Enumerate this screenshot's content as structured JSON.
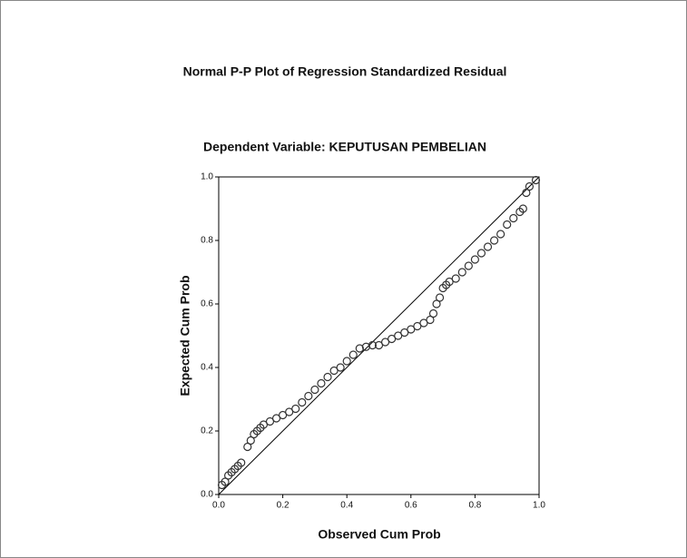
{
  "chart_data": {
    "type": "scatter",
    "title": "Normal P-P Plot of Regression Standardized Residual",
    "subtitle": "Dependent Variable: KEPUTUSAN PEMBELIAN",
    "x_label": "Observed Cum Prob",
    "y_label": "Expected Cum Prob",
    "color": "#333333",
    "x": [
      0.01,
      0.02,
      0.03,
      0.04,
      0.05,
      0.06,
      0.07,
      0.09,
      0.1,
      0.11,
      0.12,
      0.13,
      0.14,
      0.16,
      0.18,
      0.2,
      0.22,
      0.24,
      0.26,
      0.28,
      0.3,
      0.32,
      0.34,
      0.36,
      0.38,
      0.4,
      0.42,
      0.44,
      0.46,
      0.48,
      0.5,
      0.52,
      0.54,
      0.56,
      0.58,
      0.6,
      0.62,
      0.64,
      0.66,
      0.67,
      0.68,
      0.69,
      0.7,
      0.71,
      0.72,
      0.74,
      0.76,
      0.78,
      0.8,
      0.82,
      0.84,
      0.86,
      0.88,
      0.9,
      0.92,
      0.94,
      0.95,
      0.96,
      0.97,
      0.99
    ],
    "values": [
      0.03,
      0.04,
      0.06,
      0.07,
      0.08,
      0.09,
      0.1,
      0.15,
      0.17,
      0.19,
      0.2,
      0.21,
      0.22,
      0.23,
      0.24,
      0.25,
      0.26,
      0.27,
      0.29,
      0.31,
      0.33,
      0.35,
      0.37,
      0.39,
      0.4,
      0.42,
      0.44,
      0.46,
      0.465,
      0.47,
      0.47,
      0.48,
      0.49,
      0.5,
      0.51,
      0.52,
      0.53,
      0.54,
      0.55,
      0.57,
      0.6,
      0.62,
      0.65,
      0.66,
      0.67,
      0.68,
      0.7,
      0.72,
      0.74,
      0.76,
      0.78,
      0.8,
      0.82,
      0.85,
      0.87,
      0.89,
      0.9,
      0.95,
      0.97,
      0.99
    ],
    "xlim": [
      0,
      1
    ],
    "ylim": [
      0,
      1
    ],
    "xticks": [
      {
        "value": 0,
        "label": "0.0"
      },
      0.2,
      0.4,
      0.6,
      0.8,
      {
        "value": 1,
        "label": "1.0"
      }
    ],
    "yticks": [
      {
        "value": 0,
        "label": "0.0"
      },
      0.2,
      0.4,
      0.6,
      0.8,
      {
        "value": 1,
        "label": "1.0"
      }
    ],
    "reference_line": true
  }
}
